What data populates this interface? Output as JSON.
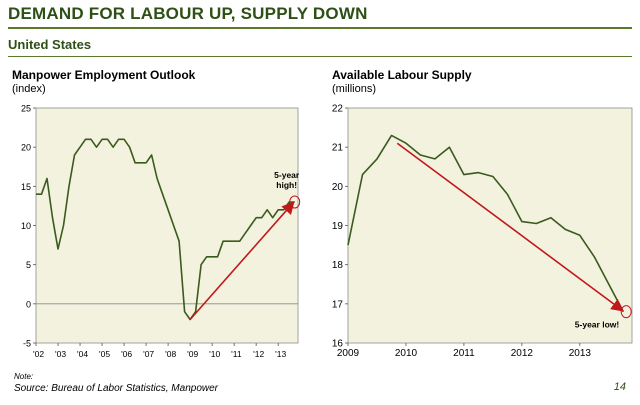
{
  "header": {
    "title": "DEMAND FOR LABOUR UP, SUPPLY DOWN",
    "subtitle": "United States"
  },
  "footer": {
    "note": "Note:",
    "source": "Source: Bureau of Labor Statistics, Manpower",
    "page": "14"
  },
  "colors": {
    "brand": "#2d5016",
    "plot_bg": "#f2f2de",
    "line": "#3a5a1e",
    "arrow": "#c0191b"
  },
  "chart_data": [
    {
      "type": "line",
      "title": "Manpower Employment Outlook",
      "unit_label": "(index)",
      "ylim": [
        -5,
        25
      ],
      "yticks": [
        -5,
        0,
        5,
        10,
        15,
        20,
        25
      ],
      "xlim": [
        2002,
        2013.9
      ],
      "xticks": [
        {
          "v": 2002,
          "label": "'02"
        },
        {
          "v": 2003,
          "label": "'03"
        },
        {
          "v": 2004,
          "label": "'04"
        },
        {
          "v": 2005,
          "label": "'05"
        },
        {
          "v": 2006,
          "label": "'06"
        },
        {
          "v": 2007,
          "label": "'07"
        },
        {
          "v": 2008,
          "label": "'08"
        },
        {
          "v": 2009,
          "label": "'09"
        },
        {
          "v": 2010,
          "label": "'10"
        },
        {
          "v": 2011,
          "label": "'11"
        },
        {
          "v": 2012,
          "label": "'12"
        },
        {
          "v": 2013,
          "label": "'13"
        }
      ],
      "grid": false,
      "series": [
        {
          "x": [
            2002.0,
            2002.25,
            2002.5,
            2002.75,
            2003.0,
            2003.25,
            2003.5,
            2003.75,
            2004.0,
            2004.25,
            2004.5,
            2004.75,
            2005.0,
            2005.25,
            2005.5,
            2005.75,
            2006.0,
            2006.25,
            2006.5,
            2006.75,
            2007.0,
            2007.25,
            2007.5,
            2007.75,
            2008.0,
            2008.25,
            2008.5,
            2008.75,
            2009.0,
            2009.25,
            2009.5,
            2009.75,
            2010.0,
            2010.25,
            2010.5,
            2010.75,
            2011.0,
            2011.25,
            2011.5,
            2011.75,
            2012.0,
            2012.25,
            2012.5,
            2012.75,
            2013.0,
            2013.25,
            2013.5,
            2013.75
          ],
          "values": [
            14,
            14,
            16,
            11,
            7,
            10,
            15,
            19,
            20,
            21,
            21,
            20,
            21,
            21,
            20,
            21,
            21,
            20,
            18,
            18,
            18,
            19,
            16,
            14,
            12,
            10,
            8,
            -1,
            -2,
            -1,
            5,
            6,
            6,
            6,
            8,
            8,
            8,
            8,
            9,
            10,
            11,
            11,
            12,
            11,
            12,
            12,
            13,
            13
          ]
        }
      ],
      "trend_arrow": {
        "x1": 2009.0,
        "y1": -2,
        "x2": 2013.65,
        "y2": 12.8
      },
      "callout": {
        "text_lines": [
          "5-year",
          "high!"
        ],
        "x": 2013.75,
        "y": 13
      }
    },
    {
      "type": "line",
      "title": "Available Labour Supply",
      "unit_label": "(millions)",
      "ylim": [
        16,
        22
      ],
      "yticks": [
        16,
        17,
        18,
        19,
        20,
        21,
        22
      ],
      "xlim": [
        2009,
        2013.9
      ],
      "xticks": [
        {
          "v": 2009,
          "label": "2009"
        },
        {
          "v": 2010,
          "label": "2010"
        },
        {
          "v": 2011,
          "label": "2011"
        },
        {
          "v": 2012,
          "label": "2012"
        },
        {
          "v": 2013,
          "label": "2013"
        }
      ],
      "grid": false,
      "series": [
        {
          "x": [
            2009.0,
            2009.25,
            2009.5,
            2009.75,
            2010.0,
            2010.25,
            2010.5,
            2010.75,
            2011.0,
            2011.25,
            2011.5,
            2011.75,
            2012.0,
            2012.25,
            2012.5,
            2012.75,
            2013.0,
            2013.25,
            2013.5,
            2013.75
          ],
          "values": [
            18.5,
            20.3,
            20.7,
            21.3,
            21.1,
            20.8,
            20.7,
            21.0,
            20.3,
            20.35,
            20.25,
            19.8,
            19.1,
            19.05,
            19.2,
            18.9,
            18.75,
            18.2,
            17.5,
            16.8
          ]
        }
      ],
      "trend_arrow": {
        "x1": 2009.85,
        "y1": 21.1,
        "x2": 2013.72,
        "y2": 16.85
      },
      "callout": {
        "text_lines": [
          "5-year low!"
        ],
        "x": 2013.8,
        "y": 16.8
      }
    }
  ]
}
